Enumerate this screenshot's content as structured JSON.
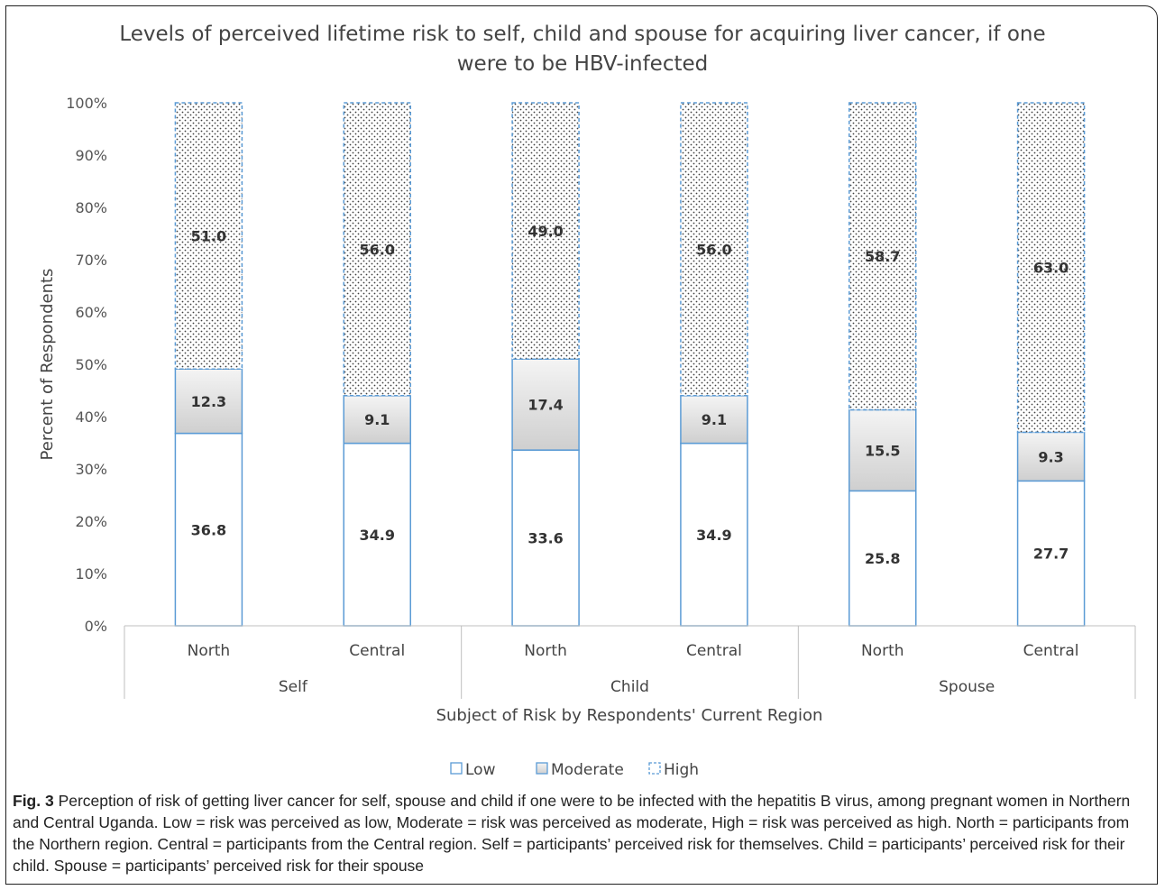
{
  "chart_data": {
    "type": "bar",
    "stacked": true,
    "title": "Levels of perceived lifetime risk to self, child and spouse for acquiring liver cancer, if one were to be HBV-infected",
    "title_lines": [
      "Levels of perceived lifetime risk to self, child and spouse for acquiring liver cancer, if one",
      "were to be HBV-infected"
    ],
    "xlabel": "Subject of Risk by Respondents' Current Region",
    "ylabel": "Percent of Respondents",
    "ylim": [
      0,
      100
    ],
    "y_ticks": [
      "0%",
      "10%",
      "20%",
      "30%",
      "40%",
      "50%",
      "60%",
      "70%",
      "80%",
      "90%",
      "100%"
    ],
    "groups": [
      "Self",
      "Child",
      "Spouse"
    ],
    "categories": [
      "North",
      "Central",
      "North",
      "Central",
      "North",
      "Central"
    ],
    "series": [
      {
        "name": "Low",
        "values": [
          36.8,
          34.9,
          33.6,
          34.9,
          25.8,
          27.7
        ],
        "labels": [
          "36.8",
          "34.9",
          "33.6",
          "34.9",
          "25.8",
          "27.7"
        ]
      },
      {
        "name": "Moderate",
        "values": [
          12.3,
          9.1,
          17.4,
          9.1,
          15.5,
          9.3
        ],
        "labels": [
          "12.3",
          "9.1",
          "17.4",
          "9.1",
          "15.5",
          "9.3"
        ]
      },
      {
        "name": "High",
        "values": [
          51.0,
          56.0,
          49.0,
          56.0,
          58.7,
          63.0
        ],
        "labels": [
          "51.0",
          "56.0",
          "49.0",
          "56.0",
          "58.7",
          "63.0"
        ]
      }
    ],
    "legend_position": "bottom",
    "grid": false,
    "colors": {
      "bar_border": "#5b9bd5",
      "moderate_fill": "#d9d9d9",
      "high_dots": "#404040"
    }
  },
  "caption": {
    "label": "Fig. 3",
    "text": " Perception of risk of getting liver cancer for self, spouse and child if one were to be infected with the hepatitis B virus, among pregnant women in Northern and Central Uganda. Low = risk was perceived as low, Moderate = risk was perceived as moderate, High = risk was perceived as high. North = participants from the Northern region. Central = participants from the Central region. Self = participants’ perceived risk for themselves. Child = participants’ perceived risk for their child. Spouse = participants’ perceived risk for their spouse"
  }
}
